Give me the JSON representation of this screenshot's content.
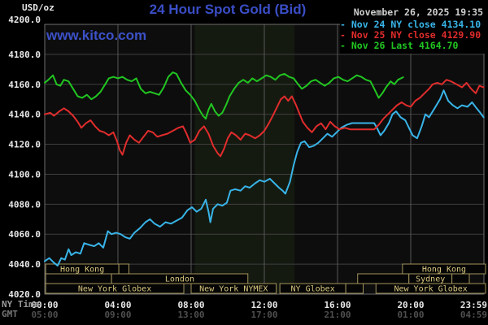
{
  "header": {
    "unit_label": "USD/oz",
    "title": "24 Hour Spot Gold (Bid)",
    "datetime": "November 26, 2025 19:35",
    "watermark": "www.kitco.com"
  },
  "legend": {
    "dash": "-",
    "entries": [
      {
        "label": "Nov 24 NY close 4134.10",
        "color": "#38b4e8"
      },
      {
        "label": "Nov 25 NY close 4129.90",
        "color": "#e02c2c"
      },
      {
        "label": "Nov 26 Last 4164.70",
        "color": "#21c621"
      }
    ]
  },
  "axis_labels": {
    "ny_time": "NY Time",
    "gmt": "GMT"
  },
  "colors": {
    "page_bg": "#000000",
    "plot_bg": "#0d0d0d",
    "band": "#151a10",
    "grid_h": "#3f3f3f",
    "grid_v": "#565656",
    "border": "#6e6e6e",
    "axis_text": "#e8e8e8",
    "dim_text": "#4f4f4f",
    "session_border": "#a2945c",
    "session_text": "#d9c87e",
    "session_fill": "#050505"
  },
  "chart_data": {
    "type": "line",
    "title": "24 Hour Spot Gold (Bid)",
    "ylabel": "USD/oz",
    "x_range_hours": [
      0,
      24
    ],
    "y_range": [
      4020,
      4200
    ],
    "grid": true,
    "legend_position": "top-right",
    "y_ticks": [
      "4200.0",
      "4180.0",
      "4160.0",
      "4140.0",
      "4120.0",
      "4100.0",
      "4080.0",
      "4060.0",
      "4040.0",
      "4020.0"
    ],
    "x_ticks": [
      {
        "h": 0,
        "ny": "00:00",
        "gmt": "05:00"
      },
      {
        "h": 4,
        "ny": "04:00",
        "gmt": "09:00"
      },
      {
        "h": 8,
        "ny": "08:00",
        "gmt": "13:00"
      },
      {
        "h": 12,
        "ny": "12:00",
        "gmt": "17:00"
      },
      {
        "h": 16,
        "ny": "16:00",
        "gmt": "21:00"
      },
      {
        "h": 20,
        "ny": "20:00",
        "gmt": "01:00"
      },
      {
        "h": 23.983,
        "ny": "23:59",
        "gmt": "04:59"
      }
    ],
    "highlight_band_hours": [
      8.2,
      13.65
    ],
    "sessions": [
      [
        [
          0.05,
          4.05,
          "Hong Kong"
        ],
        [
          4.05,
          4.6,
          ""
        ],
        [
          19.55,
          24.1,
          "Hong Kong"
        ]
      ],
      [
        [
          0.05,
          3.65,
          ""
        ],
        [
          3.65,
          11.1,
          "London"
        ],
        [
          17.1,
          19.9,
          ""
        ],
        [
          19.9,
          22.25,
          "Sydney"
        ],
        [
          22.25,
          23.2,
          ""
        ]
      ],
      [
        [
          0.05,
          7.6,
          "New York Globex"
        ],
        [
          8.0,
          12.65,
          "New York NYMEX"
        ],
        [
          12.85,
          16.45,
          "NY Globex"
        ],
        [
          16.45,
          17.4,
          ""
        ],
        [
          18.1,
          24.1,
          "New York Globex"
        ]
      ]
    ],
    "series": [
      {
        "name": "Nov 24 NY close",
        "close": 4134.1,
        "color": "#38b4e8",
        "points": [
          [
            0,
            4042
          ],
          [
            0.25,
            4044
          ],
          [
            0.5,
            4041
          ],
          [
            0.7,
            4039
          ],
          [
            0.9,
            4044
          ],
          [
            1.1,
            4043
          ],
          [
            1.3,
            4050
          ],
          [
            1.45,
            4046
          ],
          [
            1.7,
            4048
          ],
          [
            1.95,
            4047
          ],
          [
            2.15,
            4054
          ],
          [
            2.4,
            4053
          ],
          [
            2.7,
            4052
          ],
          [
            2.95,
            4054
          ],
          [
            3.2,
            4051
          ],
          [
            3.45,
            4062
          ],
          [
            3.65,
            4060
          ],
          [
            3.9,
            4061
          ],
          [
            4.15,
            4060
          ],
          [
            4.4,
            4058
          ],
          [
            4.65,
            4057
          ],
          [
            4.9,
            4061
          ],
          [
            5.2,
            4064
          ],
          [
            5.5,
            4068
          ],
          [
            5.75,
            4070
          ],
          [
            6.0,
            4067
          ],
          [
            6.3,
            4065
          ],
          [
            6.6,
            4068
          ],
          [
            6.9,
            4067
          ],
          [
            7.2,
            4069
          ],
          [
            7.5,
            4071
          ],
          [
            7.8,
            4076
          ],
          [
            8.05,
            4078
          ],
          [
            8.3,
            4075
          ],
          [
            8.55,
            4077
          ],
          [
            8.8,
            4083
          ],
          [
            8.95,
            4075
          ],
          [
            9.05,
            4068
          ],
          [
            9.2,
            4077
          ],
          [
            9.45,
            4080
          ],
          [
            9.7,
            4079
          ],
          [
            9.95,
            4081
          ],
          [
            10.15,
            4089
          ],
          [
            10.4,
            4090
          ],
          [
            10.7,
            4089
          ],
          [
            10.95,
            4092
          ],
          [
            11.2,
            4091
          ],
          [
            11.5,
            4094
          ],
          [
            11.75,
            4096
          ],
          [
            12.0,
            4095
          ],
          [
            12.3,
            4097
          ],
          [
            12.55,
            4094
          ],
          [
            12.8,
            4091
          ],
          [
            13.0,
            4089
          ],
          [
            13.15,
            4087
          ],
          [
            13.4,
            4095
          ],
          [
            13.6,
            4106
          ],
          [
            13.8,
            4115
          ],
          [
            14.0,
            4121
          ],
          [
            14.2,
            4122
          ],
          [
            14.45,
            4118
          ],
          [
            14.7,
            4119
          ],
          [
            14.95,
            4121
          ],
          [
            15.2,
            4124
          ],
          [
            15.45,
            4127
          ],
          [
            15.7,
            4125
          ],
          [
            15.95,
            4128
          ],
          [
            16.2,
            4131
          ],
          [
            16.5,
            4133
          ],
          [
            16.8,
            4134.1
          ],
          [
            18.0,
            4134.1
          ],
          [
            18.15,
            4131
          ],
          [
            18.35,
            4126
          ],
          [
            18.55,
            4129
          ],
          [
            18.8,
            4134
          ],
          [
            19.0,
            4140
          ],
          [
            19.2,
            4142
          ],
          [
            19.45,
            4138
          ],
          [
            19.7,
            4136
          ],
          [
            19.9,
            4131
          ],
          [
            20.1,
            4126
          ],
          [
            20.35,
            4124
          ],
          [
            20.6,
            4132
          ],
          [
            20.8,
            4140
          ],
          [
            21.0,
            4138
          ],
          [
            21.3,
            4144
          ],
          [
            21.6,
            4150
          ],
          [
            21.8,
            4156
          ],
          [
            22.05,
            4149
          ],
          [
            22.3,
            4146
          ],
          [
            22.55,
            4144
          ],
          [
            22.8,
            4146
          ],
          [
            23.1,
            4145
          ],
          [
            23.35,
            4148
          ],
          [
            23.6,
            4144
          ],
          [
            23.8,
            4141
          ],
          [
            23.983,
            4138
          ]
        ]
      },
      {
        "name": "Nov 25 NY close",
        "close": 4129.9,
        "color": "#e02c2c",
        "points": [
          [
            0,
            4140
          ],
          [
            0.3,
            4141
          ],
          [
            0.5,
            4139
          ],
          [
            0.8,
            4142
          ],
          [
            1.05,
            4144
          ],
          [
            1.3,
            4142
          ],
          [
            1.55,
            4139
          ],
          [
            1.8,
            4135
          ],
          [
            2.0,
            4131
          ],
          [
            2.25,
            4134
          ],
          [
            2.5,
            4136
          ],
          [
            2.75,
            4132
          ],
          [
            3.0,
            4129
          ],
          [
            3.25,
            4128
          ],
          [
            3.5,
            4126
          ],
          [
            3.75,
            4128
          ],
          [
            3.95,
            4122
          ],
          [
            4.1,
            4116
          ],
          [
            4.25,
            4113
          ],
          [
            4.45,
            4121
          ],
          [
            4.65,
            4126
          ],
          [
            4.9,
            4123
          ],
          [
            5.15,
            4121
          ],
          [
            5.4,
            4125
          ],
          [
            5.65,
            4129
          ],
          [
            5.9,
            4128
          ],
          [
            6.15,
            4125
          ],
          [
            6.4,
            4126
          ],
          [
            6.7,
            4127
          ],
          [
            7.0,
            4129
          ],
          [
            7.3,
            4131
          ],
          [
            7.55,
            4132
          ],
          [
            7.75,
            4127
          ],
          [
            7.95,
            4121
          ],
          [
            8.2,
            4123
          ],
          [
            8.45,
            4129
          ],
          [
            8.7,
            4132
          ],
          [
            8.95,
            4127
          ],
          [
            9.2,
            4119
          ],
          [
            9.45,
            4114
          ],
          [
            9.6,
            4112
          ],
          [
            9.8,
            4117
          ],
          [
            10.0,
            4124
          ],
          [
            10.2,
            4128
          ],
          [
            10.45,
            4126
          ],
          [
            10.7,
            4123
          ],
          [
            10.95,
            4127
          ],
          [
            11.2,
            4126
          ],
          [
            11.5,
            4124
          ],
          [
            11.75,
            4126
          ],
          [
            12.0,
            4129
          ],
          [
            12.25,
            4134
          ],
          [
            12.5,
            4140
          ],
          [
            12.7,
            4145
          ],
          [
            12.9,
            4150
          ],
          [
            13.1,
            4152
          ],
          [
            13.3,
            4149
          ],
          [
            13.5,
            4152
          ],
          [
            13.7,
            4147
          ],
          [
            13.9,
            4141
          ],
          [
            14.1,
            4135
          ],
          [
            14.35,
            4131
          ],
          [
            14.6,
            4128
          ],
          [
            14.85,
            4132
          ],
          [
            15.1,
            4134
          ],
          [
            15.35,
            4130
          ],
          [
            15.6,
            4135
          ],
          [
            15.85,
            4132
          ],
          [
            16.1,
            4130
          ],
          [
            16.4,
            4131
          ],
          [
            16.7,
            4129.9
          ],
          [
            18.0,
            4129.9
          ],
          [
            18.25,
            4133
          ],
          [
            18.5,
            4137
          ],
          [
            18.75,
            4140
          ],
          [
            19.0,
            4143
          ],
          [
            19.25,
            4146
          ],
          [
            19.5,
            4148
          ],
          [
            19.75,
            4146
          ],
          [
            20.0,
            4145
          ],
          [
            20.25,
            4149
          ],
          [
            20.5,
            4151
          ],
          [
            20.75,
            4154
          ],
          [
            21.0,
            4157
          ],
          [
            21.2,
            4160
          ],
          [
            21.45,
            4161
          ],
          [
            21.7,
            4160
          ],
          [
            21.95,
            4163
          ],
          [
            22.2,
            4162
          ],
          [
            22.5,
            4160
          ],
          [
            22.8,
            4158
          ],
          [
            23.05,
            4161
          ],
          [
            23.3,
            4157
          ],
          [
            23.55,
            4154
          ],
          [
            23.75,
            4159
          ],
          [
            23.983,
            4158
          ]
        ]
      },
      {
        "name": "Nov 26 Last",
        "last": 4164.7,
        "color": "#21c621",
        "points": [
          [
            0,
            4161
          ],
          [
            0.2,
            4163
          ],
          [
            0.45,
            4166
          ],
          [
            0.65,
            4160
          ],
          [
            0.85,
            4159
          ],
          [
            1.05,
            4163
          ],
          [
            1.3,
            4162
          ],
          [
            1.55,
            4157
          ],
          [
            1.8,
            4152
          ],
          [
            2.05,
            4151
          ],
          [
            2.3,
            4153
          ],
          [
            2.55,
            4150
          ],
          [
            2.8,
            4152
          ],
          [
            3.05,
            4155
          ],
          [
            3.3,
            4160
          ],
          [
            3.5,
            4164
          ],
          [
            3.75,
            4165
          ],
          [
            4.0,
            4164
          ],
          [
            4.25,
            4165
          ],
          [
            4.5,
            4163
          ],
          [
            4.75,
            4162
          ],
          [
            5.0,
            4164
          ],
          [
            5.25,
            4157
          ],
          [
            5.5,
            4154
          ],
          [
            5.75,
            4155
          ],
          [
            6.0,
            4154
          ],
          [
            6.25,
            4153
          ],
          [
            6.5,
            4158
          ],
          [
            6.75,
            4165
          ],
          [
            7.0,
            4168
          ],
          [
            7.2,
            4167
          ],
          [
            7.45,
            4161
          ],
          [
            7.7,
            4156
          ],
          [
            7.95,
            4153
          ],
          [
            8.2,
            4149
          ],
          [
            8.45,
            4143
          ],
          [
            8.65,
            4139
          ],
          [
            8.8,
            4137
          ],
          [
            8.95,
            4143
          ],
          [
            9.1,
            4147
          ],
          [
            9.3,
            4142
          ],
          [
            9.5,
            4139
          ],
          [
            9.7,
            4141
          ],
          [
            9.9,
            4146
          ],
          [
            10.1,
            4152
          ],
          [
            10.35,
            4157
          ],
          [
            10.6,
            4161
          ],
          [
            10.85,
            4163
          ],
          [
            11.1,
            4161
          ],
          [
            11.35,
            4164
          ],
          [
            11.6,
            4162
          ],
          [
            11.85,
            4164
          ],
          [
            12.1,
            4166
          ],
          [
            12.35,
            4165
          ],
          [
            12.6,
            4163
          ],
          [
            12.85,
            4166
          ],
          [
            13.1,
            4167
          ],
          [
            13.35,
            4165
          ],
          [
            13.6,
            4164
          ],
          [
            13.85,
            4160
          ],
          [
            14.05,
            4157
          ],
          [
            14.3,
            4159
          ],
          [
            14.55,
            4162
          ],
          [
            14.8,
            4163
          ],
          [
            15.05,
            4161
          ],
          [
            15.3,
            4159
          ],
          [
            15.55,
            4161
          ],
          [
            15.8,
            4164
          ],
          [
            16.05,
            4165
          ],
          [
            16.3,
            4163
          ],
          [
            16.55,
            4162
          ],
          [
            16.8,
            4164
          ],
          [
            17.05,
            4166
          ],
          [
            17.3,
            4165
          ],
          [
            17.55,
            4163
          ],
          [
            17.8,
            4162
          ],
          [
            18.05,
            4156
          ],
          [
            18.25,
            4151
          ],
          [
            18.45,
            4154
          ],
          [
            18.65,
            4158
          ],
          [
            18.9,
            4162
          ],
          [
            19.1,
            4160
          ],
          [
            19.3,
            4163
          ],
          [
            19.583,
            4164.7
          ]
        ]
      }
    ]
  }
}
